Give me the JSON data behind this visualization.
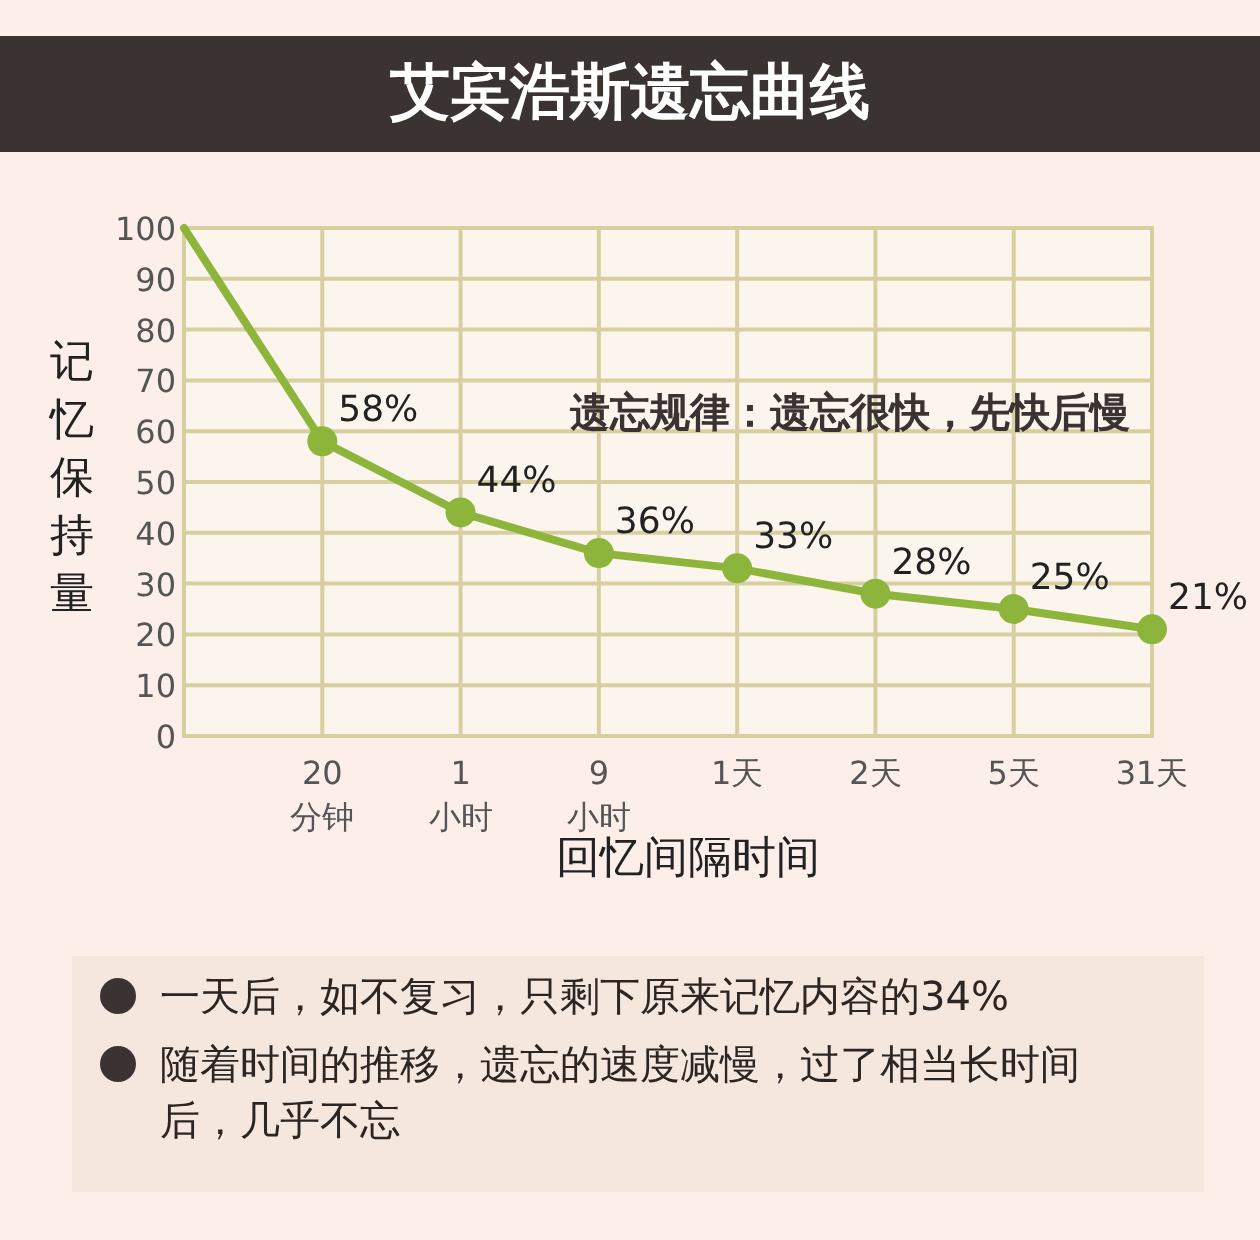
{
  "chart_data": {
    "type": "line",
    "title": "艾宾浩斯遗忘曲线",
    "xlabel": "回忆间隔时间",
    "ylabel": "记忆保持量",
    "categories": [
      null,
      "20 分钟",
      "1 小时",
      "9 小时",
      "1天",
      "2天",
      "5天",
      "31天"
    ],
    "values": [
      100,
      58,
      44,
      36,
      33,
      28,
      25,
      21
    ],
    "value_labels": [
      null,
      "58%",
      "44%",
      "36%",
      "33%",
      "28%",
      "25%",
      "21%"
    ],
    "color": "#8db53c",
    "marker": "circle",
    "line_style": "solid",
    "grid": true,
    "ylim": [
      0,
      100
    ],
    "yticks": [
      0,
      10,
      20,
      30,
      40,
      50,
      60,
      70,
      80,
      90,
      100
    ],
    "annotations": [
      "遗忘规律：遗忘很快，先快后慢",
      "一天后，如不复习，只剩下原来记忆内容的34%",
      "随着时间的推移，遗忘的速度减慢，过了相当长时间后，几乎不忘"
    ]
  }
}
